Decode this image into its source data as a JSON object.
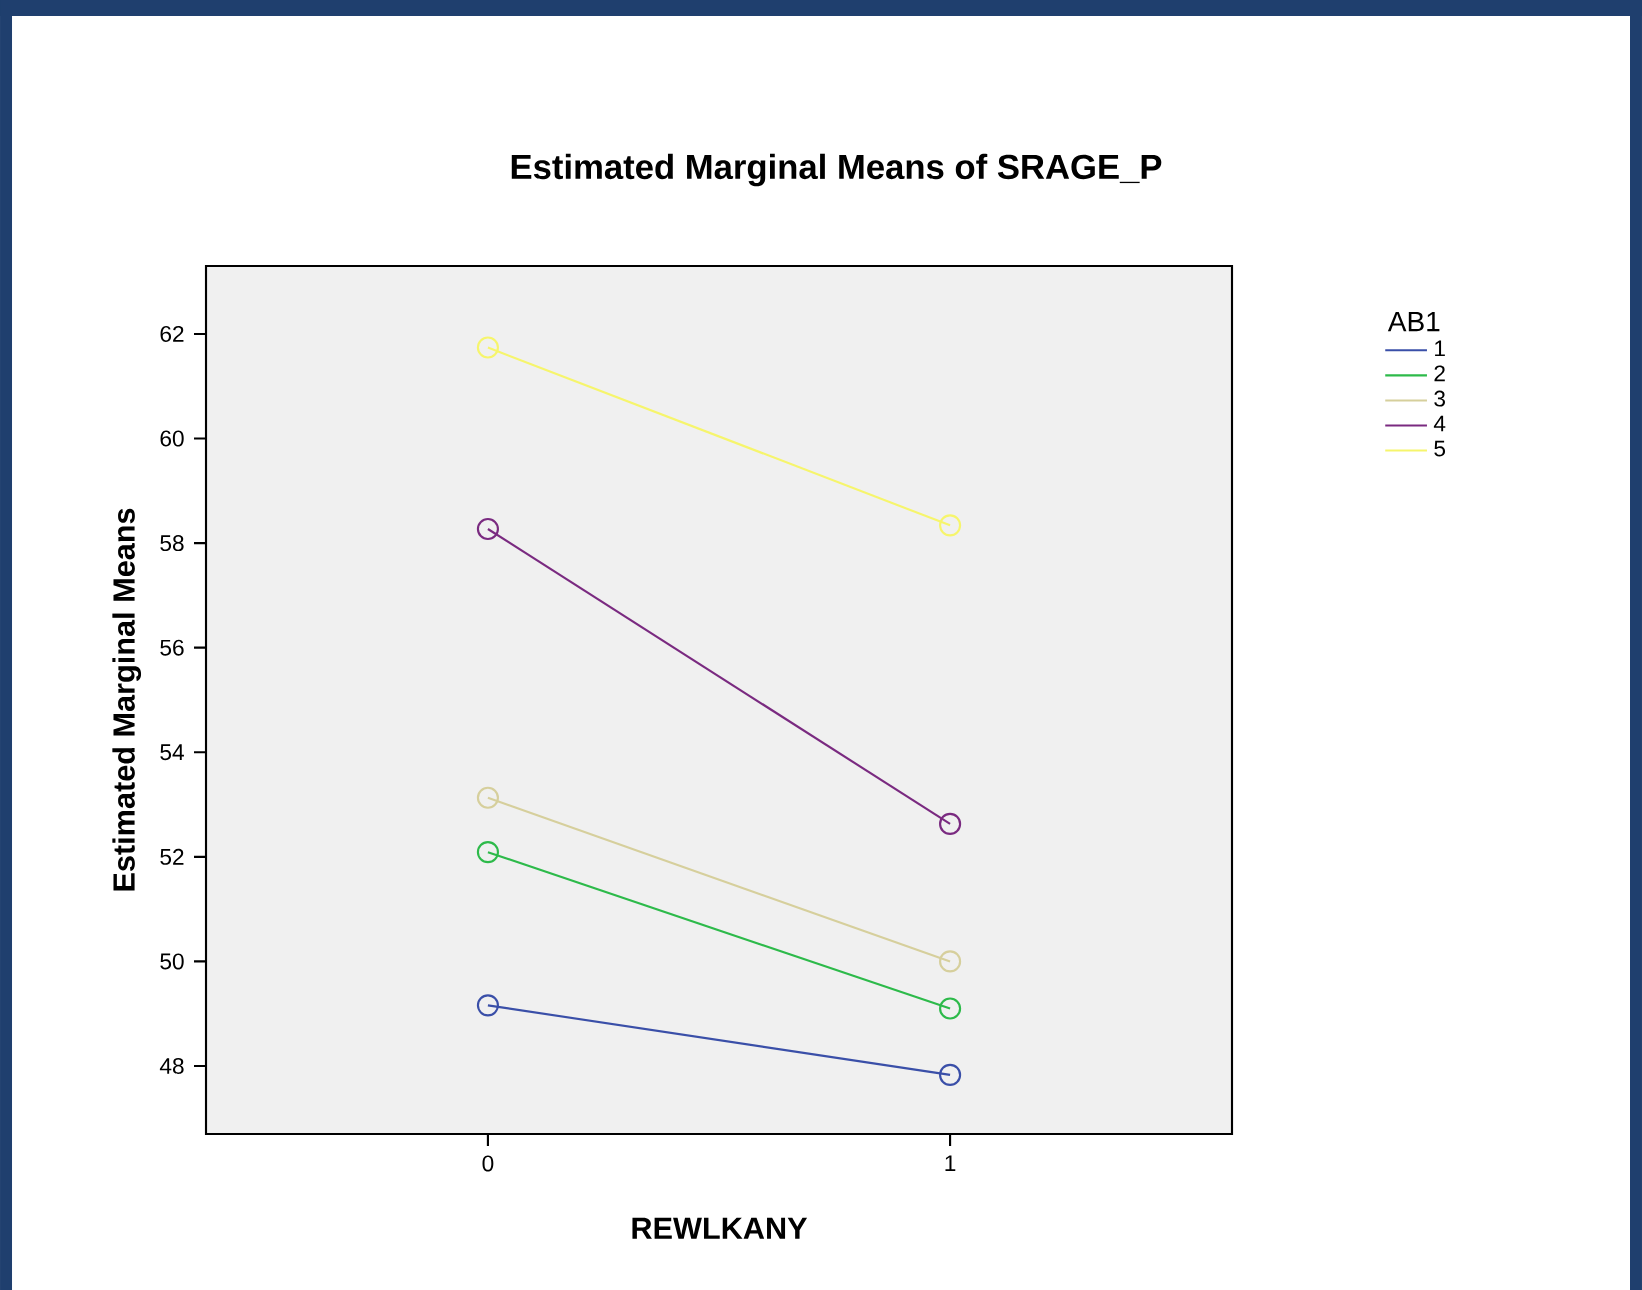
{
  "chart_data": {
    "type": "line",
    "title": "Estimated Marginal Means of SRAGE_P",
    "xlabel": "REWLKANY",
    "ylabel": "Estimated Marginal Means",
    "legend_title": "AB1",
    "categories": [
      "0",
      "1"
    ],
    "series": [
      {
        "name": "1",
        "color": "#3a4fa8",
        "values": [
          49.16,
          47.83
        ]
      },
      {
        "name": "2",
        "color": "#2dba4a",
        "values": [
          52.09,
          49.1
        ]
      },
      {
        "name": "3",
        "color": "#d6cf9c",
        "values": [
          53.13,
          50.0
        ]
      },
      {
        "name": "4",
        "color": "#7a2a80",
        "values": [
          58.27,
          52.63
        ]
      },
      {
        "name": "5",
        "color": "#f6f56c",
        "values": [
          61.74,
          58.34
        ]
      }
    ],
    "ylim": [
      46.7,
      63.3
    ],
    "yticks": [
      48,
      50,
      52,
      54,
      56,
      58,
      60,
      62
    ],
    "legend": "right",
    "marker": "circle",
    "line_style": "solid",
    "grid": false
  }
}
